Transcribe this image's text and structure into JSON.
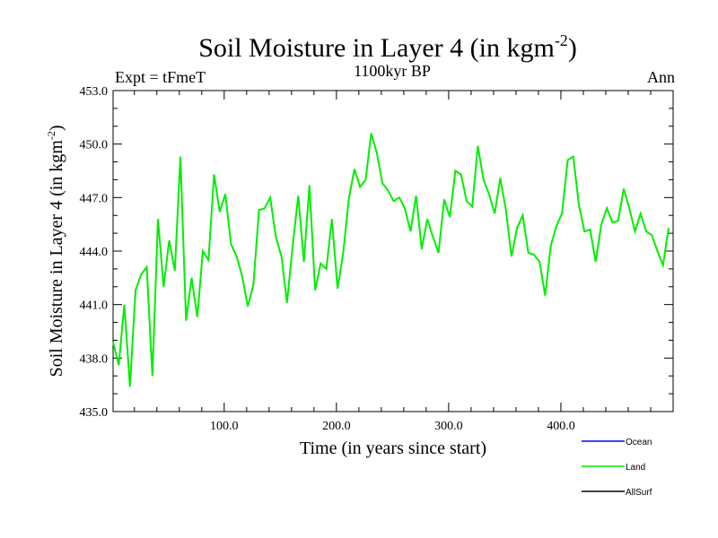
{
  "chart_data": {
    "type": "line",
    "title": "Soil Moisture in Layer 4 (in kgm",
    "title_superscript": "-2",
    "title_close": ")",
    "subtitle_left": "Expt = tFmeT",
    "subtitle_center": "1100kyr BP",
    "subtitle_right": "Ann",
    "xlabel": "Time (in years since start)",
    "ylabel": "Soil Moisture in Layer 4 (in kgm",
    "ylabel_superscript": "-2",
    "ylabel_close": ")",
    "xlim": [
      1,
      500
    ],
    "ylim": [
      435,
      453
    ],
    "x_ticks": [
      {
        "value": 100,
        "label": "100.0"
      },
      {
        "value": 200,
        "label": "200.0"
      },
      {
        "value": 300,
        "label": "300.0"
      },
      {
        "value": 400,
        "label": "400.0"
      }
    ],
    "y_ticks": [
      {
        "value": 435,
        "label": "435.0"
      },
      {
        "value": 438,
        "label": "438.0"
      },
      {
        "value": 441,
        "label": "441.0"
      },
      {
        "value": 444,
        "label": "444.0"
      },
      {
        "value": 447,
        "label": "447.0"
      },
      {
        "value": 450,
        "label": "450.0"
      },
      {
        "value": 453,
        "label": "453.0"
      }
    ],
    "legend": [
      {
        "name": "Ocean",
        "color": "#0000ff"
      },
      {
        "name": "Land",
        "color": "#00ee00"
      },
      {
        "name": "AllSurf",
        "color": "#000000"
      }
    ],
    "series": [
      {
        "name": "Land",
        "color": "#00ee00",
        "x_start": 1,
        "x_step": 5,
        "values": [
          438.9,
          437.6,
          441.0,
          436.4,
          441.8,
          442.7,
          443.1,
          437.0,
          445.8,
          442.0,
          444.6,
          442.9,
          449.3,
          440.1,
          442.5,
          440.3,
          444.0,
          443.5,
          448.3,
          446.2,
          447.2,
          444.4,
          443.7,
          442.6,
          440.9,
          442.1,
          446.3,
          446.4,
          447.0,
          444.8,
          443.7,
          441.1,
          444.3,
          447.1,
          443.4,
          447.7,
          441.8,
          443.3,
          443.0,
          445.8,
          441.9,
          443.9,
          446.9,
          448.6,
          447.6,
          448.0,
          450.6,
          449.5,
          447.8,
          447.4,
          446.8,
          447.0,
          446.4,
          445.1,
          447.1,
          444.1,
          445.8,
          444.8,
          443.9,
          446.9,
          445.9,
          448.5,
          448.3,
          446.8,
          446.5,
          449.9,
          448.0,
          447.2,
          446.1,
          448.1,
          446.3,
          443.7,
          445.3,
          446.0,
          443.9,
          443.8,
          443.4,
          441.5,
          444.3,
          445.4,
          446.1,
          449.1,
          449.3,
          446.6,
          445.1,
          445.2,
          443.4,
          445.5,
          446.4,
          445.6,
          445.7,
          447.5,
          446.4,
          445.1,
          446.1,
          445.1,
          444.9,
          444.0,
          443.2,
          445.3
        ]
      }
    ]
  }
}
